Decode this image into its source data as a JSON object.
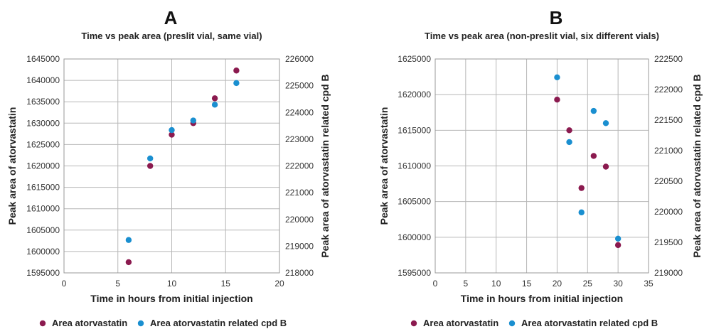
{
  "chart_data": [
    {
      "type": "scatter",
      "panel_label": "A",
      "title": "Time vs peak area (preslit vial, same vial)",
      "xlabel": "Time in hours from initial injection",
      "ylabel": "Peak area of atorvastatin",
      "y2label": "Peak area of atorvastatin related cpd B",
      "xlim": [
        0,
        20
      ],
      "ylim": [
        1595000,
        1645000
      ],
      "y2lim": [
        218000,
        226000
      ],
      "x_ticks": [
        0,
        5,
        10,
        15,
        20
      ],
      "y_ticks": [
        1595000,
        1600000,
        1605000,
        1610000,
        1615000,
        1620000,
        1625000,
        1630000,
        1635000,
        1640000,
        1645000
      ],
      "y2_ticks": [
        218000,
        219000,
        220000,
        221000,
        222000,
        223000,
        224000,
        225000,
        226000
      ],
      "grid": true,
      "legend_position": "bottom",
      "series": [
        {
          "name": "Area atorvastatin",
          "color": "#8b1a4f",
          "axis": "left",
          "x": [
            6,
            8,
            10,
            12,
            14,
            16
          ],
          "y": [
            1597500,
            1620000,
            1627300,
            1630000,
            1635800,
            1642300
          ]
        },
        {
          "name": "Area atorvastatin related cpd B",
          "color": "#1a8fd0",
          "axis": "right",
          "x": [
            6,
            8,
            10,
            12,
            14,
            16
          ],
          "y": [
            219230,
            222280,
            223340,
            223700,
            224290,
            225100
          ]
        }
      ]
    },
    {
      "type": "scatter",
      "panel_label": "B",
      "title": "Time vs peak area (non-preslit vial, six different vials)",
      "xlabel": "Time in hours from initial injection",
      "ylabel": "Peak area of atorvastatin",
      "y2label": "Peak area of atorvastatin related cpd B",
      "xlim": [
        0,
        35
      ],
      "ylim": [
        1595000,
        1625000
      ],
      "y2lim": [
        219000,
        222500
      ],
      "x_ticks": [
        0,
        5,
        10,
        15,
        20,
        25,
        30,
        35
      ],
      "y_ticks": [
        1595000,
        1600000,
        1605000,
        1610000,
        1615000,
        1620000,
        1625000
      ],
      "y2_ticks": [
        219000,
        219500,
        220000,
        220500,
        221000,
        221500,
        222000,
        222500
      ],
      "grid": true,
      "legend_position": "bottom",
      "series": [
        {
          "name": "Area atorvastatin",
          "color": "#8b1a4f",
          "axis": "left",
          "x": [
            20,
            22,
            24,
            26,
            28,
            30
          ],
          "y": [
            1619300,
            1615000,
            1606900,
            1611400,
            1609900,
            1598900
          ]
        },
        {
          "name": "Area atorvastatin related cpd B",
          "color": "#1a8fd0",
          "axis": "right",
          "x": [
            20,
            22,
            24,
            26,
            28,
            30
          ],
          "y": [
            222200,
            221140,
            219990,
            221650,
            221450,
            219560
          ]
        }
      ]
    }
  ]
}
